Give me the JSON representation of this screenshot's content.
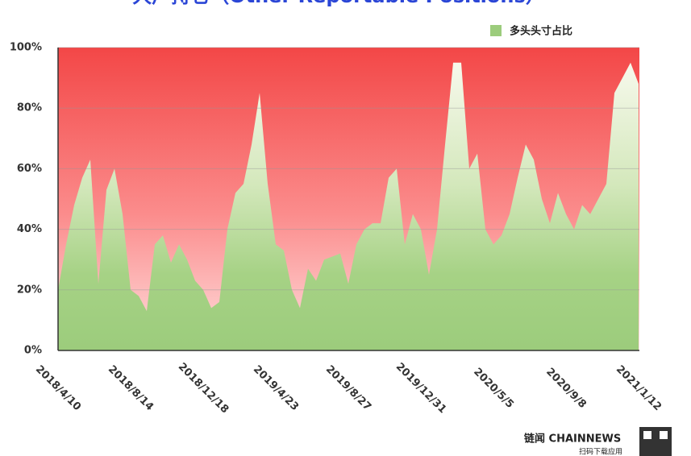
{
  "chart_data": {
    "type": "area",
    "title": "大户持仓（Other Reportable Positions）",
    "categories": [
      "2018/4/10",
      null,
      null,
      null,
      null,
      null,
      null,
      null,
      null,
      "2018/8/14",
      null,
      null,
      null,
      null,
      null,
      null,
      null,
      null,
      "2018/12/18",
      null,
      null,
      null,
      null,
      null,
      null,
      null,
      null,
      "2019/4/23",
      null,
      null,
      null,
      null,
      null,
      null,
      null,
      null,
      "2019/8/27",
      null,
      null,
      null,
      null,
      null,
      null,
      null,
      null,
      "2019/12/31",
      null,
      null,
      null,
      null,
      null,
      null,
      null,
      null,
      "2020/5/5",
      null,
      null,
      null,
      null,
      null,
      null,
      null,
      null,
      "2020/9/8",
      null,
      null,
      null,
      null,
      null,
      null,
      null,
      null,
      "2021/1/12"
    ],
    "series": [
      {
        "name": "多头头寸占比",
        "color": "#9ccc7c",
        "values": [
          20,
          35,
          48,
          57,
          63,
          22,
          53,
          60,
          45,
          20,
          18,
          13,
          35,
          38,
          29,
          35,
          30,
          23,
          20,
          14,
          16,
          40,
          52,
          55,
          68,
          85,
          55,
          35,
          33,
          20,
          14,
          27,
          23,
          30,
          31,
          32,
          22,
          35,
          40,
          42,
          42,
          57,
          60,
          35,
          45,
          40,
          25,
          40,
          68,
          95,
          95,
          60,
          65,
          40,
          35,
          38,
          45,
          57,
          68,
          63,
          50,
          42,
          52,
          45,
          40,
          48,
          45,
          50,
          55,
          85,
          90,
          95,
          88
        ]
      }
    ],
    "ylim": [
      0,
      100
    ],
    "yticks": [
      {
        "value": 0,
        "label": "0%"
      },
      {
        "value": 20,
        "label": "20%"
      },
      {
        "value": 40,
        "label": "40%"
      },
      {
        "value": 60,
        "label": "60%"
      },
      {
        "value": 80,
        "label": "80%"
      },
      {
        "value": 100,
        "label": "100%"
      }
    ],
    "grid": true,
    "legend": "top-right"
  },
  "branding": {
    "logo": "链闻 CHAINNEWS",
    "tagline": "扫码下载应用"
  }
}
